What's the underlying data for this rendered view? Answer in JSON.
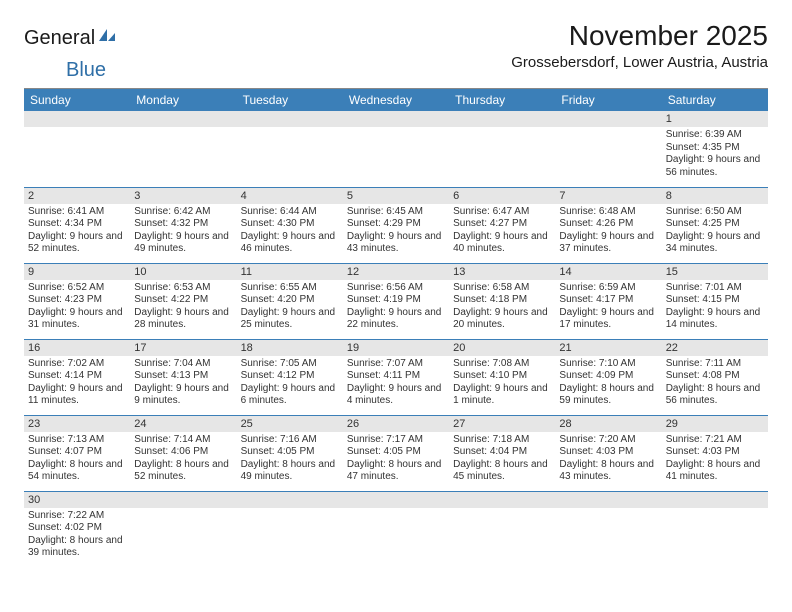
{
  "logo": {
    "text1": "General",
    "text2": "Blue"
  },
  "header": {
    "month_title": "November 2025",
    "location": "Grossebersdorf, Lower Austria, Austria"
  },
  "colors": {
    "header_bg": "#3b7fb8",
    "header_text": "#ffffff",
    "daynum_bg": "#e6e6e6",
    "row_border": "#3b7fb8",
    "logo_blue": "#2f6fa7"
  },
  "weekdays": [
    "Sunday",
    "Monday",
    "Tuesday",
    "Wednesday",
    "Thursday",
    "Friday",
    "Saturday"
  ],
  "weeks": [
    [
      {
        "day": "",
        "sunrise": "",
        "sunset": "",
        "daylight": ""
      },
      {
        "day": "",
        "sunrise": "",
        "sunset": "",
        "daylight": ""
      },
      {
        "day": "",
        "sunrise": "",
        "sunset": "",
        "daylight": ""
      },
      {
        "day": "",
        "sunrise": "",
        "sunset": "",
        "daylight": ""
      },
      {
        "day": "",
        "sunrise": "",
        "sunset": "",
        "daylight": ""
      },
      {
        "day": "",
        "sunrise": "",
        "sunset": "",
        "daylight": ""
      },
      {
        "day": "1",
        "sunrise": "Sunrise: 6:39 AM",
        "sunset": "Sunset: 4:35 PM",
        "daylight": "Daylight: 9 hours and 56 minutes."
      }
    ],
    [
      {
        "day": "2",
        "sunrise": "Sunrise: 6:41 AM",
        "sunset": "Sunset: 4:34 PM",
        "daylight": "Daylight: 9 hours and 52 minutes."
      },
      {
        "day": "3",
        "sunrise": "Sunrise: 6:42 AM",
        "sunset": "Sunset: 4:32 PM",
        "daylight": "Daylight: 9 hours and 49 minutes."
      },
      {
        "day": "4",
        "sunrise": "Sunrise: 6:44 AM",
        "sunset": "Sunset: 4:30 PM",
        "daylight": "Daylight: 9 hours and 46 minutes."
      },
      {
        "day": "5",
        "sunrise": "Sunrise: 6:45 AM",
        "sunset": "Sunset: 4:29 PM",
        "daylight": "Daylight: 9 hours and 43 minutes."
      },
      {
        "day": "6",
        "sunrise": "Sunrise: 6:47 AM",
        "sunset": "Sunset: 4:27 PM",
        "daylight": "Daylight: 9 hours and 40 minutes."
      },
      {
        "day": "7",
        "sunrise": "Sunrise: 6:48 AM",
        "sunset": "Sunset: 4:26 PM",
        "daylight": "Daylight: 9 hours and 37 minutes."
      },
      {
        "day": "8",
        "sunrise": "Sunrise: 6:50 AM",
        "sunset": "Sunset: 4:25 PM",
        "daylight": "Daylight: 9 hours and 34 minutes."
      }
    ],
    [
      {
        "day": "9",
        "sunrise": "Sunrise: 6:52 AM",
        "sunset": "Sunset: 4:23 PM",
        "daylight": "Daylight: 9 hours and 31 minutes."
      },
      {
        "day": "10",
        "sunrise": "Sunrise: 6:53 AM",
        "sunset": "Sunset: 4:22 PM",
        "daylight": "Daylight: 9 hours and 28 minutes."
      },
      {
        "day": "11",
        "sunrise": "Sunrise: 6:55 AM",
        "sunset": "Sunset: 4:20 PM",
        "daylight": "Daylight: 9 hours and 25 minutes."
      },
      {
        "day": "12",
        "sunrise": "Sunrise: 6:56 AM",
        "sunset": "Sunset: 4:19 PM",
        "daylight": "Daylight: 9 hours and 22 minutes."
      },
      {
        "day": "13",
        "sunrise": "Sunrise: 6:58 AM",
        "sunset": "Sunset: 4:18 PM",
        "daylight": "Daylight: 9 hours and 20 minutes."
      },
      {
        "day": "14",
        "sunrise": "Sunrise: 6:59 AM",
        "sunset": "Sunset: 4:17 PM",
        "daylight": "Daylight: 9 hours and 17 minutes."
      },
      {
        "day": "15",
        "sunrise": "Sunrise: 7:01 AM",
        "sunset": "Sunset: 4:15 PM",
        "daylight": "Daylight: 9 hours and 14 minutes."
      }
    ],
    [
      {
        "day": "16",
        "sunrise": "Sunrise: 7:02 AM",
        "sunset": "Sunset: 4:14 PM",
        "daylight": "Daylight: 9 hours and 11 minutes."
      },
      {
        "day": "17",
        "sunrise": "Sunrise: 7:04 AM",
        "sunset": "Sunset: 4:13 PM",
        "daylight": "Daylight: 9 hours and 9 minutes."
      },
      {
        "day": "18",
        "sunrise": "Sunrise: 7:05 AM",
        "sunset": "Sunset: 4:12 PM",
        "daylight": "Daylight: 9 hours and 6 minutes."
      },
      {
        "day": "19",
        "sunrise": "Sunrise: 7:07 AM",
        "sunset": "Sunset: 4:11 PM",
        "daylight": "Daylight: 9 hours and 4 minutes."
      },
      {
        "day": "20",
        "sunrise": "Sunrise: 7:08 AM",
        "sunset": "Sunset: 4:10 PM",
        "daylight": "Daylight: 9 hours and 1 minute."
      },
      {
        "day": "21",
        "sunrise": "Sunrise: 7:10 AM",
        "sunset": "Sunset: 4:09 PM",
        "daylight": "Daylight: 8 hours and 59 minutes."
      },
      {
        "day": "22",
        "sunrise": "Sunrise: 7:11 AM",
        "sunset": "Sunset: 4:08 PM",
        "daylight": "Daylight: 8 hours and 56 minutes."
      }
    ],
    [
      {
        "day": "23",
        "sunrise": "Sunrise: 7:13 AM",
        "sunset": "Sunset: 4:07 PM",
        "daylight": "Daylight: 8 hours and 54 minutes."
      },
      {
        "day": "24",
        "sunrise": "Sunrise: 7:14 AM",
        "sunset": "Sunset: 4:06 PM",
        "daylight": "Daylight: 8 hours and 52 minutes."
      },
      {
        "day": "25",
        "sunrise": "Sunrise: 7:16 AM",
        "sunset": "Sunset: 4:05 PM",
        "daylight": "Daylight: 8 hours and 49 minutes."
      },
      {
        "day": "26",
        "sunrise": "Sunrise: 7:17 AM",
        "sunset": "Sunset: 4:05 PM",
        "daylight": "Daylight: 8 hours and 47 minutes."
      },
      {
        "day": "27",
        "sunrise": "Sunrise: 7:18 AM",
        "sunset": "Sunset: 4:04 PM",
        "daylight": "Daylight: 8 hours and 45 minutes."
      },
      {
        "day": "28",
        "sunrise": "Sunrise: 7:20 AM",
        "sunset": "Sunset: 4:03 PM",
        "daylight": "Daylight: 8 hours and 43 minutes."
      },
      {
        "day": "29",
        "sunrise": "Sunrise: 7:21 AM",
        "sunset": "Sunset: 4:03 PM",
        "daylight": "Daylight: 8 hours and 41 minutes."
      }
    ],
    [
      {
        "day": "30",
        "sunrise": "Sunrise: 7:22 AM",
        "sunset": "Sunset: 4:02 PM",
        "daylight": "Daylight: 8 hours and 39 minutes."
      },
      {
        "day": "",
        "sunrise": "",
        "sunset": "",
        "daylight": ""
      },
      {
        "day": "",
        "sunrise": "",
        "sunset": "",
        "daylight": ""
      },
      {
        "day": "",
        "sunrise": "",
        "sunset": "",
        "daylight": ""
      },
      {
        "day": "",
        "sunrise": "",
        "sunset": "",
        "daylight": ""
      },
      {
        "day": "",
        "sunrise": "",
        "sunset": "",
        "daylight": ""
      },
      {
        "day": "",
        "sunrise": "",
        "sunset": "",
        "daylight": ""
      }
    ]
  ]
}
